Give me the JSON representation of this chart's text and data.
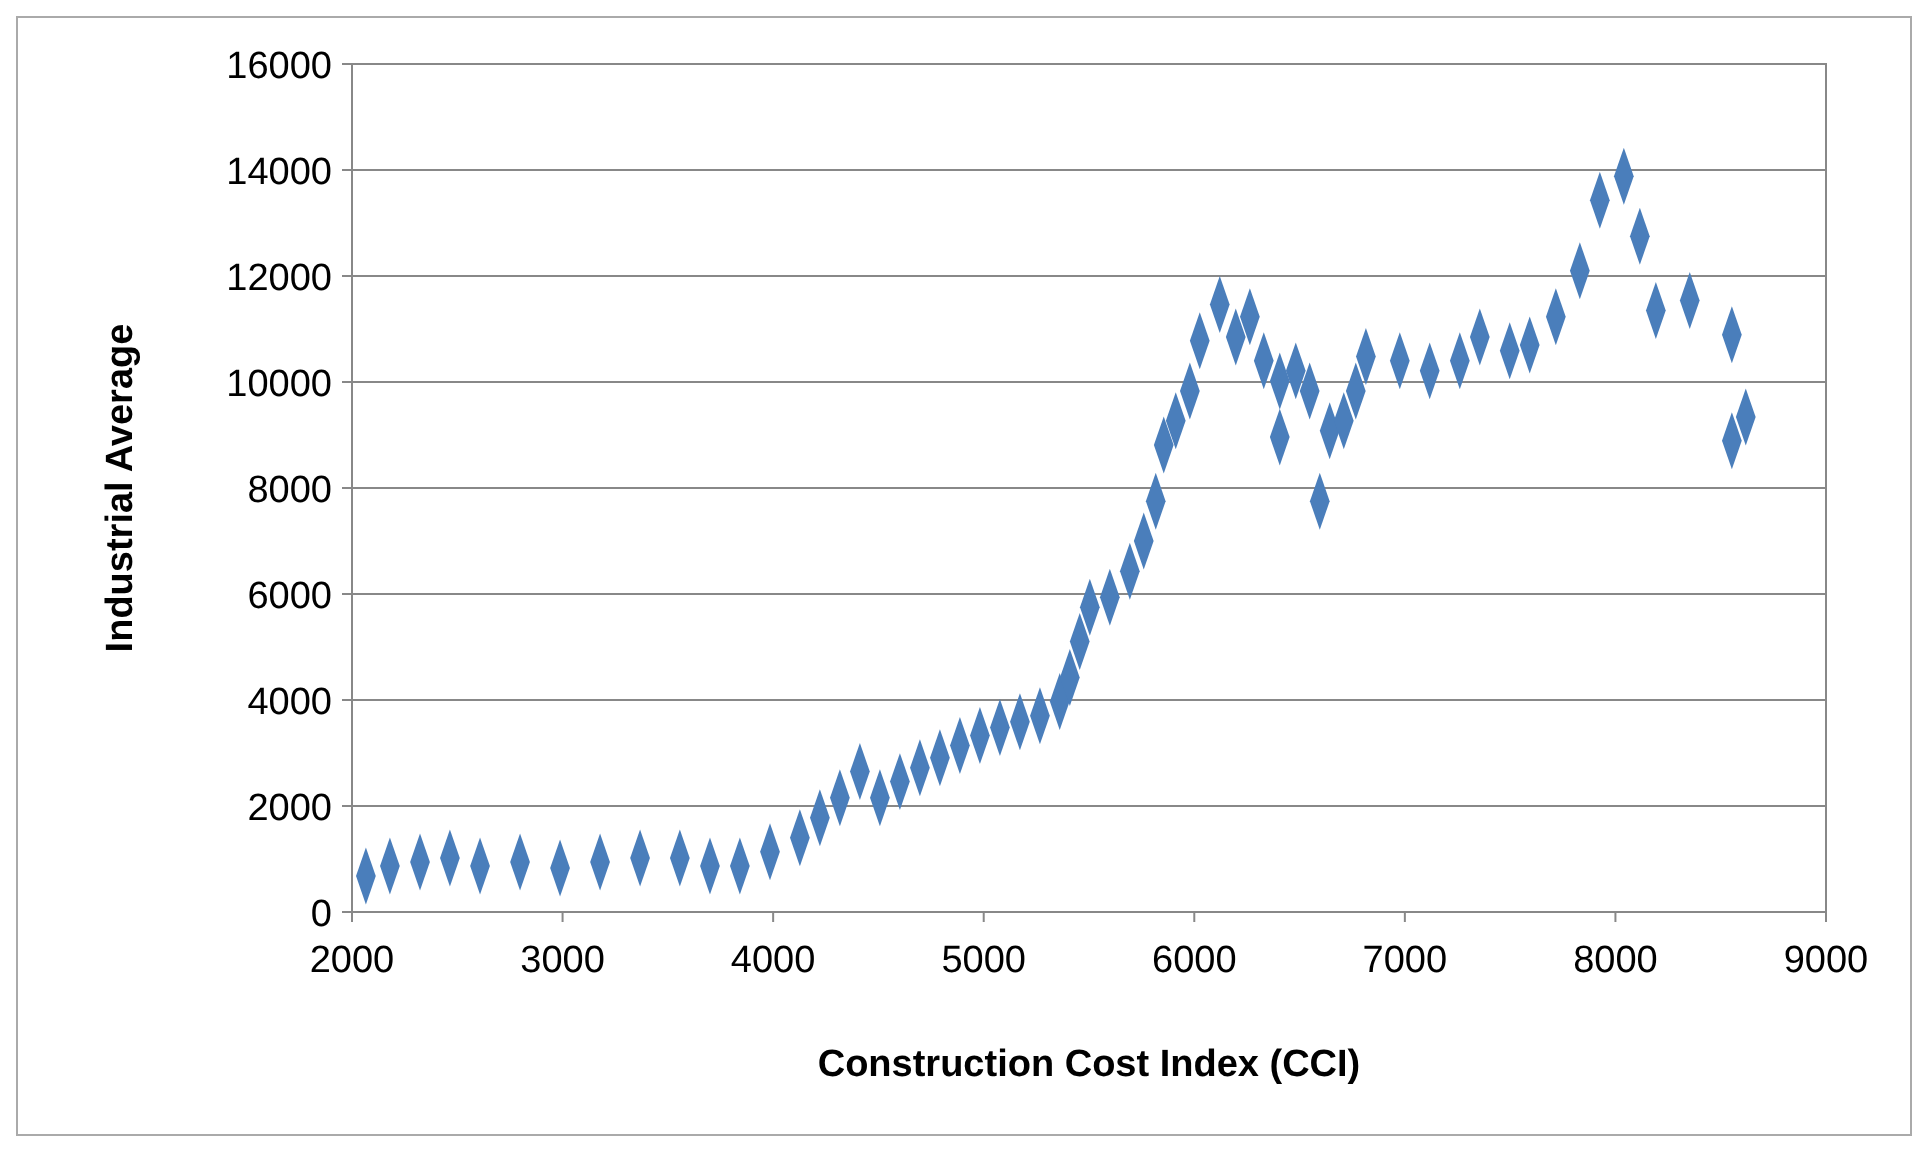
{
  "chart_data": {
    "type": "scatter",
    "xlabel": "Construction  Cost Index (CCI)",
    "ylabel": "Industrial  Average",
    "xlim": [
      2000,
      9000
    ],
    "xticks": [
      2000,
      3000,
      4000,
      5000,
      6000,
      7000,
      8000,
      9000
    ],
    "ylim": [
      0,
      16000
    ],
    "yticks": [
      0,
      2000,
      4000,
      6000,
      8000,
      10000,
      12000,
      14000,
      16000
    ],
    "grid": "y",
    "marker": "diamond",
    "series": [
      {
        "color": "#4a7ebb",
        "x": [
          2066,
          2180,
          2323,
          2465,
          2608,
          2798,
          2988,
          3178,
          3368,
          3557,
          3700,
          3842,
          3985,
          4127,
          4222,
          4317,
          4412,
          4507,
          4602,
          4697,
          4792,
          4887,
          4982,
          5077,
          5172,
          5267,
          5361,
          5409,
          5456,
          5504,
          5599,
          5694,
          5760,
          5817,
          5855,
          5912,
          5979,
          6026,
          6121,
          6197,
          6264,
          6330,
          6406,
          6406,
          6482,
          6548,
          6596,
          6643,
          6710,
          6767,
          6815,
          6976,
          7118,
          7261,
          7356,
          7498,
          7593,
          7717,
          7831,
          7926,
          8040,
          8116,
          8192,
          8353,
          8553,
          8553,
          8619
        ],
        "values": [
          680,
          870,
          945,
          1020,
          870,
          945,
          830,
          945,
          1020,
          1020,
          870,
          870,
          1135,
          1400,
          1780,
          2155,
          2650,
          2155,
          2460,
          2720,
          2910,
          3140,
          3330,
          3480,
          3590,
          3705,
          3970,
          4425,
          5105,
          5750,
          5940,
          6430,
          7000,
          7750,
          8810,
          9270,
          9830,
          10780,
          11460,
          10850,
          11230,
          10400,
          10020,
          8960,
          10210,
          9830,
          7750,
          9080,
          9270,
          9830,
          10480,
          10400,
          10210,
          10400,
          10850,
          10590,
          10700,
          11230,
          12100,
          13430,
          13880,
          12750,
          11350,
          11540,
          10890,
          8890,
          9340
        ]
      }
    ]
  }
}
